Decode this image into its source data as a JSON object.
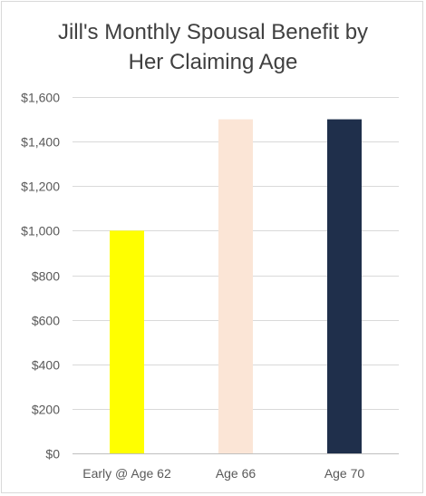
{
  "chart_data": {
    "type": "bar",
    "title_lines": [
      "Jill's Monthly Spousal Benefit by",
      "Her Claiming Age"
    ],
    "categories": [
      "Early @ Age 62",
      "Age 66",
      "Age 70"
    ],
    "values": [
      1000,
      1500,
      1500
    ],
    "colors": [
      "#ffff00",
      "#fbe5d6",
      "#1f2f4b"
    ],
    "ylim": [
      0,
      1600
    ],
    "yticks": [
      0,
      200,
      400,
      600,
      800,
      1000,
      1200,
      1400,
      1600
    ],
    "ytick_labels": [
      "$0",
      "$200",
      "$400",
      "$600",
      "$800",
      "$1,000",
      "$1,200",
      "$1,400",
      "$1,600"
    ],
    "grid": true,
    "xlabel": "",
    "ylabel": ""
  }
}
